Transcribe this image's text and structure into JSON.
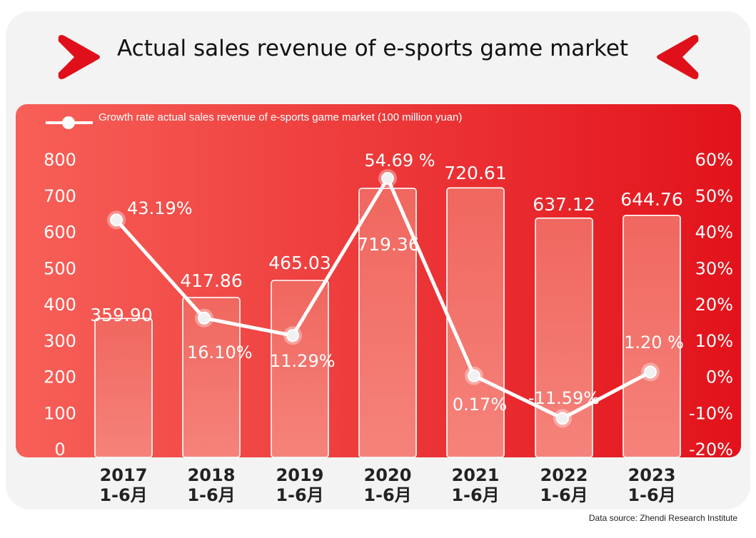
{
  "title": "Actual sales revenue of e-sports game market",
  "source": "Data source: Zhendi Research Institute",
  "colors": {
    "panel_start": "#f76058",
    "panel_end": "#e2121b",
    "accent": "#e0101a",
    "line": "#ffffff"
  },
  "icons": {
    "left": "chevron-right-icon",
    "right": "chevron-left-icon"
  },
  "chart_data": {
    "type": "bar",
    "legend": "Growth rate actual sales revenue of e-sports game market (100 million yuan)",
    "legend_position": "top-left",
    "categories": [
      [
        "2017",
        "1-6月"
      ],
      [
        "2018",
        "1-6月"
      ],
      [
        "2019",
        "1-6月"
      ],
      [
        "2020",
        "1-6月"
      ],
      [
        "2021",
        "1-6月"
      ],
      [
        "2022",
        "1-6月"
      ],
      [
        "2023",
        "1-6月"
      ]
    ],
    "bars": {
      "values": [
        359.9,
        417.86,
        465.03,
        719.36,
        720.61,
        637.12,
        644.76
      ],
      "labels": [
        "359.90",
        "417.86",
        "465.03",
        "719.36",
        "720.61",
        "637.12",
        "644.76"
      ]
    },
    "line": {
      "values": [
        43.19,
        16.1,
        11.29,
        54.69,
        0.17,
        -11.59,
        1.2
      ],
      "labels": [
        "43.19%",
        "16.10%",
        "11.29%",
        "54.69 %",
        "0.17%",
        "-11.59%",
        "1.20 %"
      ]
    },
    "y_left": {
      "min": 0,
      "max": 800,
      "ticks": [
        "0",
        "100",
        "200",
        "300",
        "400",
        "500",
        "600",
        "700",
        "800"
      ]
    },
    "y_right": {
      "min": -20,
      "max": 60,
      "ticks": [
        "-20%",
        "-10%",
        "0%",
        "10%",
        "20%",
        "30%",
        "40%",
        "50%",
        "60%"
      ]
    },
    "grid": false
  }
}
